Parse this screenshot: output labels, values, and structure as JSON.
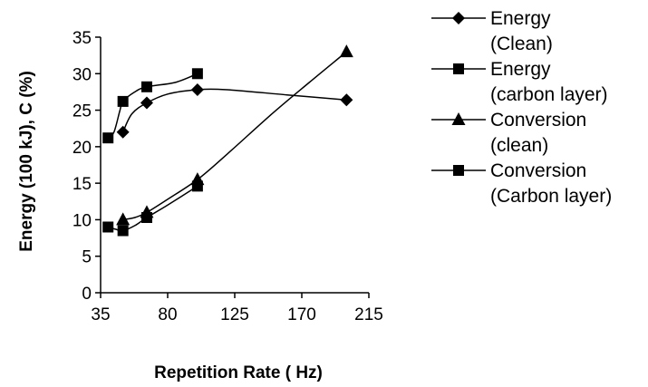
{
  "chart_data": {
    "type": "line",
    "title": "",
    "xlabel": "Repetition Rate ( Hz)",
    "ylabel": "Energy (100 kJ), C (%)",
    "xlim": [
      35,
      215
    ],
    "ylim": [
      0,
      35
    ],
    "x_ticks": [
      35,
      80,
      125,
      170,
      215
    ],
    "y_ticks": [
      0,
      5,
      10,
      15,
      20,
      25,
      30,
      35
    ],
    "grid": false,
    "legend_position": "right",
    "series": [
      {
        "name": "Energy (Clean)",
        "legend_lines": [
          "Energy",
          "(Clean)"
        ],
        "marker": "diamond",
        "x": [
          50,
          66,
          100,
          200
        ],
        "y": [
          22,
          26,
          27.8,
          26.4
        ],
        "curve": [
          [
            50,
            22
          ],
          [
            56,
            24.5
          ],
          [
            66,
            26
          ],
          [
            80,
            27.2
          ],
          [
            100,
            27.8
          ],
          [
            120,
            27.8
          ],
          [
            160,
            27.1
          ],
          [
            200,
            26.4
          ]
        ]
      },
      {
        "name": "Energy (carbon layer)",
        "legend_lines": [
          "Energy",
          "(carbon layer)"
        ],
        "marker": "square",
        "x": [
          40,
          50,
          66,
          100
        ],
        "y": [
          21.2,
          26.2,
          28.2,
          30
        ],
        "curve": [
          [
            40,
            21.2
          ],
          [
            44,
            22
          ],
          [
            48,
            25
          ],
          [
            50,
            26.2
          ],
          [
            58,
            27.5
          ],
          [
            66,
            28.2
          ],
          [
            85,
            28.8
          ],
          [
            100,
            30
          ]
        ]
      },
      {
        "name": "Conversion (clean)",
        "legend_lines": [
          "Conversion",
          "(clean)"
        ],
        "marker": "triangle",
        "x": [
          50,
          66,
          100,
          200
        ],
        "y": [
          10,
          11,
          15.5,
          33
        ],
        "curve": [
          [
            50,
            10
          ],
          [
            58,
            10.3
          ],
          [
            66,
            11
          ],
          [
            80,
            12.8
          ],
          [
            100,
            15.5
          ],
          [
            120,
            19
          ],
          [
            150,
            24.5
          ],
          [
            175,
            28.8
          ],
          [
            200,
            33
          ]
        ]
      },
      {
        "name": "Conversion (Carbon layer)",
        "legend_lines": [
          "Conversion",
          "(Carbon layer)"
        ],
        "marker": "square",
        "x": [
          40,
          50,
          66,
          100
        ],
        "y": [
          9,
          8.5,
          10.3,
          14.6
        ],
        "curve": [
          [
            40,
            9
          ],
          [
            45,
            8.7
          ],
          [
            50,
            8.5
          ],
          [
            58,
            9.2
          ],
          [
            66,
            10.3
          ],
          [
            80,
            12
          ],
          [
            100,
            14.6
          ]
        ]
      }
    ]
  }
}
